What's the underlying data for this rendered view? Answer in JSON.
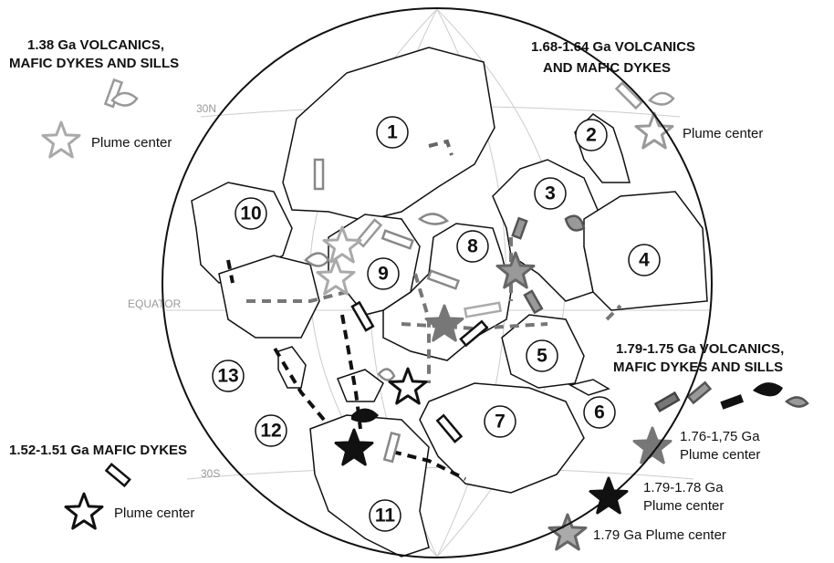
{
  "grid_labels": [
    "30N",
    "EQUATOR",
    "30S"
  ],
  "blocks": [
    "1",
    "2",
    "3",
    "4",
    "5",
    "6",
    "7",
    "8",
    "9",
    "10",
    "11",
    "12",
    "13"
  ],
  "legends": [
    {
      "title": [
        "1.38 Ga VOLCANICS,",
        "MAFIC DYKES AND SILLS"
      ],
      "plume": "Plume center"
    },
    {
      "title": [
        "1.68-1.64 Ga VOLCANICS",
        "AND MAFIC DYKES"
      ],
      "plume": "Plume center"
    },
    {
      "title": [
        "1.52-1.51 Ga MAFIC DYKES"
      ],
      "plume": "Plume center"
    },
    {
      "title": [
        "1.79-1.75 Ga VOLCANICS,",
        "MAFIC DYKES AND SILLS"
      ],
      "plumes": [
        [
          "1.76-1,75 Ga",
          "Plume center"
        ],
        [
          "1.79-1.78 Ga",
          "Plume center"
        ],
        [
          "1.79 Ga Plume center"
        ]
      ]
    }
  ]
}
